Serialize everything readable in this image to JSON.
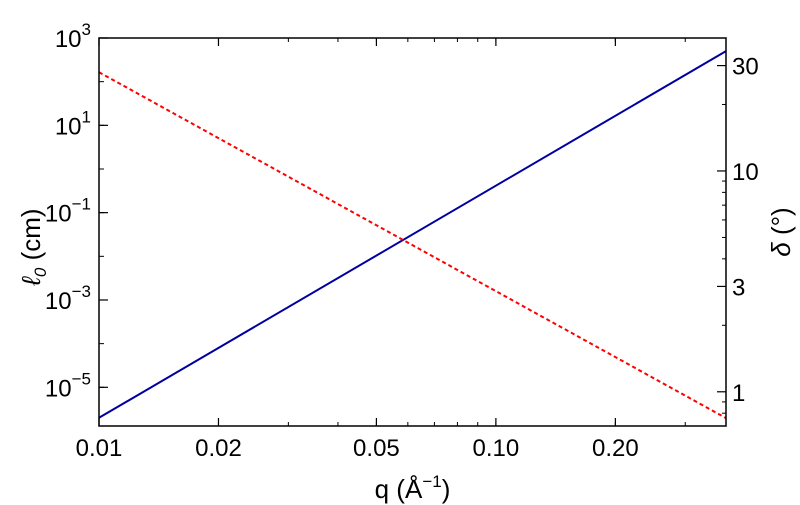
{
  "chart_data": {
    "type": "line",
    "xlabel": {
      "base": "q (Å",
      "sup": "−1",
      "close": ")"
    },
    "ylabel_left": {
      "main": "ℓ",
      "sub": "0",
      "unit": " (cm)"
    },
    "ylabel_right": {
      "symbol": "δ",
      "unit": " (°)"
    },
    "xscale": "log",
    "yscale_left": "log",
    "yscale_right": "log",
    "xlim": [
      0.01,
      0.38
    ],
    "ylim_left": [
      1.3e-06,
      1000
    ],
    "ylim_right": [
      0.7,
      40
    ],
    "x_ticks": [
      {
        "value": 0.01,
        "label": "0.01"
      },
      {
        "value": 0.02,
        "label": "0.02"
      },
      {
        "value": 0.05,
        "label": "0.05"
      },
      {
        "value": 0.1,
        "label": "0.10"
      },
      {
        "value": 0.2,
        "label": "0.20"
      }
    ],
    "y_left_ticks": [
      {
        "value": 1000,
        "base": "10",
        "exp": "3"
      },
      {
        "value": 10,
        "base": "10",
        "exp": "1"
      },
      {
        "value": 0.1,
        "base": "10",
        "exp": "−1"
      },
      {
        "value": 0.001,
        "base": "10",
        "exp": "−3"
      },
      {
        "value": 1e-05,
        "base": "10",
        "exp": "−5"
      }
    ],
    "y_right_ticks": [
      {
        "value": 30,
        "label": "30"
      },
      {
        "value": 10,
        "label": "10"
      },
      {
        "value": 3,
        "label": "3"
      },
      {
        "value": 1,
        "label": "1"
      }
    ],
    "series": [
      {
        "axis": "left",
        "color": "#0000a0",
        "dash": "solid",
        "x": [
          0.01,
          0.38
        ],
        "y": [
          2e-06,
          500
        ]
      },
      {
        "axis": "right",
        "color": "#ff0000",
        "dash": "dotted",
        "x": [
          0.01,
          0.38
        ],
        "y": [
          28,
          0.76
        ]
      }
    ],
    "grid": false,
    "legend": "none"
  }
}
